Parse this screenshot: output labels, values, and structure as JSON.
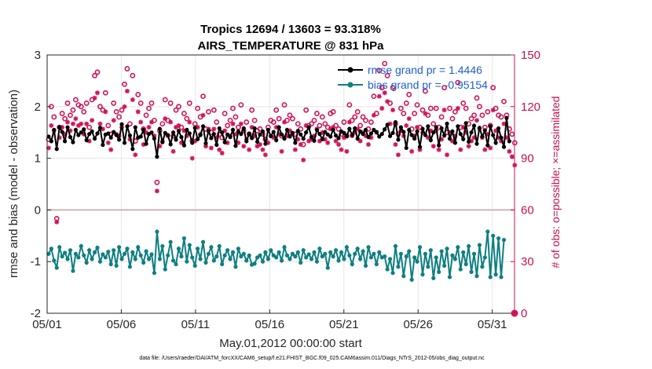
{
  "chart_data": {
    "type": "line",
    "title": "Tropics 12694 / 13603 = 93.318%",
    "subtitle": "AIRS_TEMPERATURE @ 831 hPa",
    "xlabel": "May.01,2012 00:00:00 start",
    "ylabel": "rmse and bias (model - observation)",
    "y2label": "# of obs: o=possible; ×=assimilated",
    "xticks": [
      "05/01",
      "05/06",
      "05/11",
      "05/16",
      "05/21",
      "05/26",
      "05/31"
    ],
    "xlim": [
      0,
      31.5
    ],
    "ylim": [
      -2,
      3
    ],
    "yticks": [
      "-2",
      "-1",
      "0",
      "1",
      "2",
      "3"
    ],
    "y2lim": [
      0,
      150
    ],
    "y2ticks": [
      "0",
      "30",
      "60",
      "90",
      "120",
      "150"
    ],
    "legend": {
      "location": "top-right",
      "entries": [
        "rmse grand pr = 1.4446",
        "bias grand pr = -0.95154"
      ]
    },
    "colors": {
      "rmse": "#000000",
      "bias": "#0f7f80",
      "obs": "#d0145a",
      "zero": "#c8b8b8"
    },
    "series": [
      {
        "name": "rmse",
        "values": [
          1.42,
          1.33,
          1.55,
          1.18,
          1.6,
          1.51,
          1.33,
          1.6,
          1.41,
          1.31,
          1.55,
          1.45,
          1.5,
          1.56,
          1.35,
          1.47,
          1.52,
          1.38,
          1.48,
          1.59,
          1.26,
          1.46,
          1.48,
          1.4,
          1.51,
          1.45,
          1.36,
          1.66,
          1.3,
          1.62,
          1.44,
          1.18,
          1.6,
          1.4,
          1.42,
          1.55,
          1.28,
          1.47,
          1.5,
          1.38,
          1.03,
          1.57,
          1.31,
          1.49,
          1.45,
          1.27,
          1.5,
          1.36,
          1.53,
          1.41,
          1.25,
          1.55,
          1.48,
          1.3,
          1.59,
          1.37,
          1.45,
          1.62,
          1.29,
          1.53,
          1.39,
          1.47,
          1.26,
          1.58,
          1.5,
          1.31,
          1.46,
          1.41,
          1.55,
          1.24,
          1.52,
          1.47,
          1.58,
          1.33,
          1.48,
          1.39,
          1.58,
          1.32,
          1.46,
          1.52,
          1.28,
          1.55,
          1.43,
          1.51,
          1.35,
          1.6,
          1.46,
          1.38,
          1.55,
          1.42,
          1.49,
          1.3,
          1.53,
          1.46,
          1.38,
          1.5,
          1.6,
          1.41,
          1.34,
          1.55,
          1.47,
          1.37,
          1.51,
          1.46,
          1.42,
          1.55,
          1.44,
          1.39,
          1.52,
          1.49,
          1.43,
          1.57,
          1.45,
          1.58,
          1.38,
          1.52,
          1.47,
          1.55,
          1.41,
          1.48,
          1.55,
          1.51,
          1.42,
          1.47,
          1.56,
          1.65,
          1.43,
          1.49,
          1.7,
          1.36,
          1.6,
          1.51,
          1.2,
          1.55,
          1.45,
          1.38,
          1.52,
          1.22,
          1.57,
          1.45,
          1.62,
          1.35,
          1.5,
          1.6,
          1.25,
          1.58,
          1.44,
          1.67,
          1.38,
          1.52,
          1.3,
          1.62,
          1.47,
          1.37,
          1.68,
          1.32,
          1.5,
          1.63,
          1.28,
          1.59,
          1.42,
          1.54,
          1.25,
          1.62,
          1.45,
          1.3,
          1.58,
          1.4,
          1.22,
          1.78,
          1.33
        ]
      },
      {
        "name": "bias",
        "values": [
          -0.85,
          -0.75,
          -0.98,
          -1.12,
          -0.72,
          -0.9,
          -0.83,
          -0.95,
          -0.78,
          -1.18,
          -0.85,
          -0.92,
          -0.7,
          -0.88,
          -1.02,
          -0.78,
          -0.95,
          -0.82,
          -0.73,
          -1.0,
          -0.86,
          -0.92,
          -0.81,
          -1.05,
          -0.78,
          -1.08,
          -0.72,
          -0.95,
          -0.85,
          -0.75,
          -1.1,
          -0.82,
          -0.95,
          -0.72,
          -0.88,
          -1.02,
          -0.8,
          -0.95,
          -0.86,
          -1.22,
          -0.42,
          -0.95,
          -0.7,
          -1.15,
          -0.88,
          -0.62,
          -0.98,
          -1.05,
          -0.75,
          -0.9,
          -0.55,
          -1.0,
          -0.68,
          -0.92,
          -1.08,
          -0.75,
          -0.95,
          -0.62,
          -1.02,
          -0.85,
          -0.72,
          -0.98,
          -0.9,
          -0.7,
          -1.05,
          -0.88,
          -0.78,
          -0.95,
          -0.82,
          -1.1,
          -0.75,
          -0.9,
          -0.85,
          -0.98,
          -0.88,
          -1.06,
          -1.04,
          -0.92,
          -0.88,
          -1.0,
          -0.82,
          -0.95,
          -0.78,
          -0.88,
          -0.92,
          -0.82,
          -0.98,
          -0.72,
          -0.88,
          -0.95,
          -0.85,
          -0.9,
          -0.82,
          -1.02,
          -0.78,
          -0.92,
          -0.86,
          -0.95,
          -0.82,
          -1.0,
          -0.75,
          -0.9,
          -0.85,
          -1.12,
          -0.82,
          -0.9,
          -0.78,
          -0.98,
          -0.82,
          -0.95,
          -0.72,
          -0.88,
          -1.05,
          -0.85,
          -0.75,
          -0.95,
          -0.8,
          -1.08,
          -0.72,
          -0.92,
          -0.85,
          -1.05,
          -0.82,
          -0.92,
          -0.9,
          -1.15,
          -0.95,
          -1.22,
          -0.7,
          -1.1,
          -0.85,
          -1.28,
          -0.9,
          -0.8,
          -1.35,
          -0.92,
          -1.0,
          -0.72,
          -1.25,
          -0.85,
          -1.1,
          -0.78,
          -1.32,
          -0.92,
          -1.2,
          -0.8,
          -1.08,
          -0.75,
          -1.3,
          -0.88,
          -0.95,
          -0.72,
          -1.15,
          -0.82,
          -1.05,
          -0.7,
          -1.2,
          -0.85,
          -1.28,
          -0.68,
          -1.1,
          -0.92,
          -0.42,
          -1.3,
          -0.5,
          -1.25,
          -0.55,
          -1.3,
          -0.58
        ]
      },
      {
        "name": "possible",
        "axis": "right",
        "values": [
          101,
          120,
          114,
          55,
          108,
          116,
          113,
          122,
          115,
          118,
          124,
          121,
          120,
          117,
          122,
          108,
          124,
          138,
          140,
          120,
          118,
          128,
          109,
          104,
          122,
          117,
          114,
          118,
          133,
          142,
          110,
          138,
          100,
          127,
          122,
          107,
          115,
          119,
          122,
          112,
          76,
          106,
          110,
          124,
          112,
          122,
          103,
          118,
          120,
          108,
          116,
          113,
          122,
          100,
          110,
          119,
          114,
          126,
          107,
          117,
          105,
          118,
          111,
          104,
          102,
          116,
          109,
          112,
          119,
          114,
          108,
          121,
          106,
          111,
          104,
          118,
          112,
          106,
          107,
          104,
          101,
          108,
          112,
          111,
          118,
          113,
          103,
          121,
          112,
          115,
          113,
          104,
          110,
          107,
          98,
          118,
          109,
          110,
          112,
          116,
          109,
          114,
          110,
          108,
          116,
          117,
          109,
          107,
          104,
          111,
          103,
          121,
          112,
          114,
          117,
          109,
          114,
          112,
          107,
          111,
          126,
          116,
          141,
          131,
          145,
          138,
          122,
          131,
          110,
          104,
          119,
          116,
          122,
          127,
          107,
          116,
          121,
          108,
          118,
          129,
          115,
          119,
          110,
          119,
          108,
          114,
          131,
          105,
          119,
          113,
          117,
          134,
          108,
          122,
          119,
          110,
          113,
          115,
          125,
          120,
          115,
          108,
          117,
          109,
          131,
          119,
          115,
          114,
          123,
          115,
          107,
          104,
          99
        ]
      },
      {
        "name": "assimilated",
        "axis": "right",
        "values": [
          96,
          109,
          106,
          53,
          102,
          108,
          104,
          111,
          106,
          110,
          113,
          109,
          110,
          104,
          110,
          100,
          112,
          125,
          128,
          110,
          107,
          117,
          99,
          95,
          112,
          104,
          103,
          108,
          120,
          129,
          101,
          124,
          92,
          117,
          111,
          98,
          105,
          108,
          111,
          103,
          71,
          97,
          100,
          113,
          103,
          111,
          94,
          108,
          109,
          99,
          106,
          103,
          111,
          90,
          100,
          108,
          104,
          115,
          97,
          107,
          96,
          107,
          102,
          95,
          93,
          106,
          99,
          103,
          110,
          104,
          99,
          110,
          97,
          101,
          95,
          108,
          103,
          97,
          98,
          95,
          92,
          99,
          103,
          102,
          108,
          104,
          94,
          111,
          103,
          106,
          104,
          95,
          101,
          98,
          89,
          109,
          100,
          101,
          103,
          107,
          100,
          105,
          101,
          99,
          107,
          108,
          100,
          98,
          95,
          102,
          94,
          111,
          103,
          105,
          107,
          100,
          105,
          103,
          98,
          102,
          115,
          105,
          126,
          119,
          128,
          123,
          110,
          118,
          98,
          92,
          106,
          103,
          109,
          113,
          94,
          103,
          108,
          95,
          105,
          116,
          102,
          106,
          97,
          106,
          95,
          101,
          118,
          92,
          105,
          100,
          103,
          119,
          95,
          108,
          105,
          97,
          100,
          102,
          112,
          107,
          102,
          95,
          104,
          96,
          118,
          106,
          102,
          100,
          110,
          102,
          94,
          91,
          86
        ]
      }
    ],
    "footer": "data file: /Users/raeder/DAI/ATM_forcXX/CAM6_setup/f.e21.FHIST_BGC.f09_025.CAM6assim.011/Diags_NTrS_2012-05/obs_diag_output.nc"
  }
}
